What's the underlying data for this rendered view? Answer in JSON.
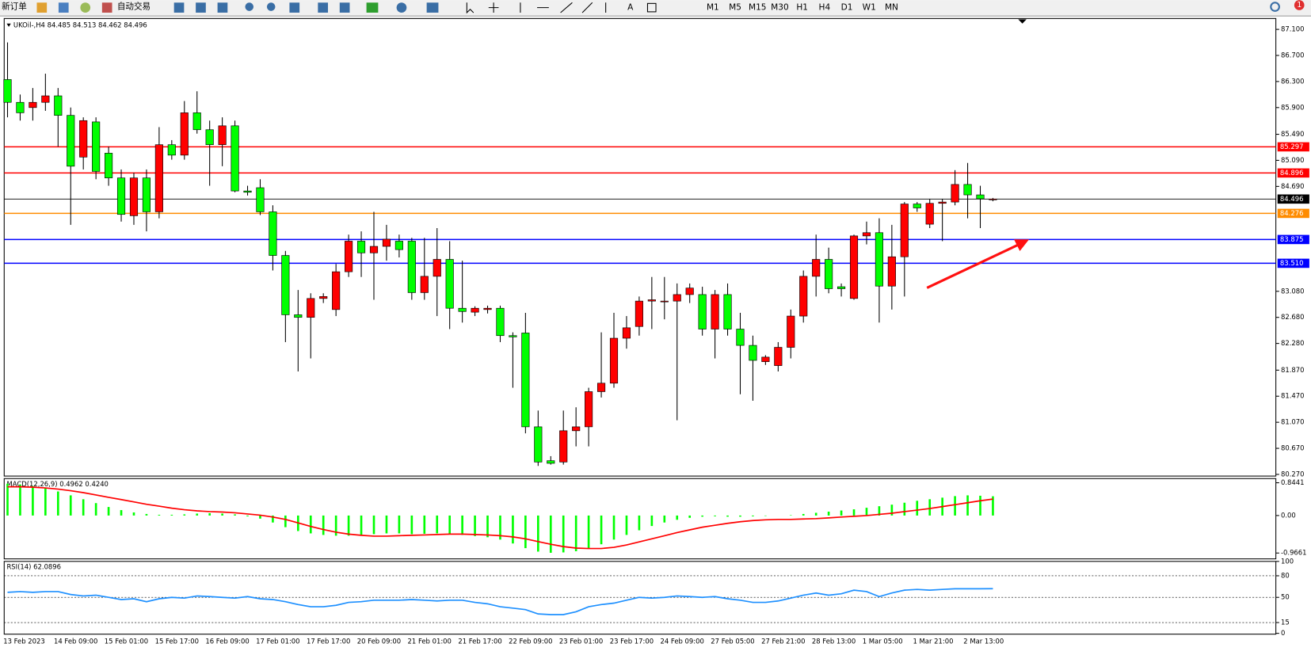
{
  "toolbar": {
    "new_order": "新订单",
    "auto_trading": "自动交易",
    "timeframes": [
      "M1",
      "M5",
      "M15",
      "M30",
      "H1",
      "H4",
      "D1",
      "W1",
      "MN"
    ],
    "text_tool": "A",
    "notification": "1"
  },
  "chart_data": [
    {
      "type": "candlestick",
      "title": "UKOil-,H4 84.485 84.513 84.462 84.496",
      "up_color": "#ff0000",
      "down_color": "#00ff00",
      "categories": [
        "13 Feb 2023",
        null,
        null,
        null,
        "14 Feb 09:00",
        null,
        null,
        null,
        "15 Feb 01:00",
        null,
        null,
        null,
        "15 Feb 17:00",
        null,
        null,
        null,
        "16 Feb 09:00",
        null,
        null,
        null,
        "17 Feb 01:00",
        null,
        null,
        null,
        "17 Feb 17:00",
        null,
        null,
        null,
        "20 Feb 09:00",
        null,
        null,
        null,
        "21 Feb 01:00",
        null,
        null,
        null,
        "21 Feb 17:00",
        null,
        null,
        null,
        "22 Feb 09:00",
        null,
        null,
        null,
        "23 Feb 01:00",
        null,
        null,
        null,
        "23 Feb 17:00",
        null,
        null,
        null,
        "24 Feb 09:00",
        null,
        null,
        null,
        "27 Feb 05:00",
        null,
        null,
        null,
        "27 Feb 21:00",
        null,
        null,
        null,
        "28 Feb 13:00",
        null,
        null,
        null,
        "1 Mar 05:00",
        null,
        null,
        null,
        "1 Mar 21:00",
        null,
        null,
        null,
        "2 Mar 13:00",
        null,
        null
      ],
      "open": [
        86.33,
        85.98,
        85.9,
        85.98,
        86.08,
        85.78,
        85.14,
        85.68,
        85.2,
        84.82,
        84.24,
        84.82,
        84.3,
        85.33,
        85.17,
        85.82,
        85.56,
        85.33,
        85.62,
        84.62,
        84.67,
        84.3,
        83.63,
        82.72,
        82.68,
        82.97,
        82.8,
        83.38,
        83.85,
        83.67,
        83.77,
        83.85,
        83.85,
        83.06,
        83.31,
        83.57,
        82.82,
        82.76,
        82.8,
        82.82,
        82.4,
        82.44,
        81.0,
        80.48,
        80.46,
        80.94,
        81.0,
        81.54,
        81.67,
        82.36,
        82.54,
        82.93,
        82.93,
        82.93,
        83.03,
        83.03,
        82.5,
        83.03,
        82.5,
        82.25,
        82.0,
        81.94,
        82.22,
        82.7,
        83.31,
        83.57,
        83.15,
        82.97,
        83.93,
        83.98,
        83.16,
        83.61,
        84.42,
        84.11,
        84.43,
        84.45,
        84.72,
        84.56,
        84.485
      ],
      "high": [
        86.9,
        86.1,
        86.2,
        86.42,
        86.2,
        85.9,
        85.75,
        85.75,
        85.3,
        84.95,
        84.9,
        84.95,
        85.6,
        85.4,
        86.0,
        86.15,
        85.7,
        85.75,
        85.7,
        84.7,
        84.8,
        84.4,
        83.7,
        83.1,
        83.05,
        83.05,
        83.5,
        83.95,
        84.0,
        84.3,
        84.1,
        83.95,
        83.9,
        83.9,
        84.05,
        83.85,
        83.55,
        82.85,
        82.86,
        82.86,
        82.45,
        82.75,
        81.25,
        80.55,
        81.25,
        81.3,
        81.6,
        82.45,
        82.75,
        82.7,
        83.0,
        83.3,
        83.3,
        83.2,
        83.2,
        83.15,
        83.1,
        83.2,
        82.75,
        82.4,
        82.1,
        82.3,
        82.8,
        83.4,
        83.95,
        83.75,
        83.2,
        83.95,
        84.15,
        84.2,
        84.1,
        84.45,
        84.45,
        84.5,
        84.5,
        84.94,
        85.05,
        84.7,
        84.513
      ],
      "low": [
        85.75,
        85.7,
        85.7,
        85.85,
        85.3,
        84.1,
        84.95,
        84.8,
        84.7,
        84.15,
        84.1,
        84.0,
        84.2,
        85.1,
        85.1,
        85.5,
        84.7,
        85.0,
        84.6,
        84.55,
        84.25,
        83.4,
        82.3,
        81.85,
        82.05,
        82.9,
        82.7,
        83.3,
        83.3,
        82.95,
        83.55,
        83.6,
        82.95,
        82.95,
        82.7,
        82.5,
        82.6,
        82.7,
        82.74,
        82.3,
        81.6,
        80.9,
        80.4,
        80.42,
        80.42,
        80.7,
        80.7,
        81.45,
        81.6,
        82.2,
        82.4,
        82.5,
        82.65,
        81.1,
        82.9,
        82.4,
        82.05,
        82.4,
        81.5,
        81.4,
        81.95,
        81.85,
        82.05,
        82.6,
        83.0,
        83.05,
        83.0,
        82.95,
        83.8,
        82.6,
        82.8,
        83.0,
        84.3,
        84.05,
        83.85,
        84.4,
        84.2,
        84.05,
        84.462
      ],
      "close": [
        85.98,
        85.82,
        85.98,
        86.08,
        85.78,
        85.0,
        85.7,
        84.92,
        84.82,
        84.26,
        84.82,
        84.3,
        85.33,
        85.17,
        85.82,
        85.56,
        85.33,
        85.62,
        84.62,
        84.6,
        84.3,
        83.63,
        82.72,
        82.68,
        82.97,
        83.0,
        83.38,
        83.85,
        83.67,
        83.77,
        83.88,
        83.72,
        83.06,
        83.31,
        83.57,
        82.82,
        82.77,
        82.82,
        82.82,
        82.4,
        82.38,
        81.0,
        80.46,
        80.44,
        80.94,
        81.0,
        81.54,
        81.67,
        82.36,
        82.52,
        82.93,
        82.95,
        82.93,
        83.03,
        83.13,
        82.5,
        83.03,
        82.5,
        82.25,
        82.02,
        82.07,
        82.22,
        82.7,
        83.31,
        83.57,
        83.12,
        83.12,
        83.93,
        83.98,
        83.16,
        83.61,
        84.42,
        84.36,
        84.43,
        84.45,
        84.72,
        84.56,
        84.5,
        84.496
      ],
      "ylim": [
        80.27,
        87.1
      ],
      "yticks": [
        {
          "value": 87.1,
          "label": "87.100"
        },
        {
          "value": 86.7,
          "label": "86.700"
        },
        {
          "value": 86.3,
          "label": "86.300"
        },
        {
          "value": 85.9,
          "label": "85.900"
        },
        {
          "value": 85.49,
          "label": "85.490"
        },
        {
          "value": 85.09,
          "label": "85.090"
        },
        {
          "value": 84.69,
          "label": "84.690"
        },
        {
          "value": 83.08,
          "label": "83.080"
        },
        {
          "value": 82.68,
          "label": "82.680"
        },
        {
          "value": 82.28,
          "label": "82.280"
        },
        {
          "value": 81.87,
          "label": "81.870"
        },
        {
          "value": 81.47,
          "label": "81.470"
        },
        {
          "value": 81.07,
          "label": "81.070"
        },
        {
          "value": 80.67,
          "label": "80.670"
        },
        {
          "value": 80.27,
          "label": "80.270"
        }
      ],
      "hlines": [
        {
          "value": 85.297,
          "color": "#ff0000"
        },
        {
          "value": 84.896,
          "color": "#ff0000"
        },
        {
          "value": 84.496,
          "color": "#000000"
        },
        {
          "value": 84.276,
          "color": "#ff8c00"
        },
        {
          "value": 83.875,
          "color": "#0000ff"
        },
        {
          "value": 83.51,
          "label": "83.510",
          "color": "#0000ff"
        }
      ]
    },
    {
      "type": "macd",
      "title": "MACD(12,26,9) 0.4962 0.4240",
      "series": [
        {
          "kind": "bar",
          "color": "#00ff00",
          "values": [
            0.82,
            0.8,
            0.76,
            0.7,
            0.62,
            0.52,
            0.42,
            0.32,
            0.22,
            0.14,
            0.08,
            0.04,
            0.02,
            0.02,
            0.03,
            0.05,
            0.06,
            0.05,
            0.03,
            -0.02,
            -0.08,
            -0.18,
            -0.3,
            -0.4,
            -0.46,
            -0.5,
            -0.52,
            -0.52,
            -0.5,
            -0.48,
            -0.46,
            -0.46,
            -0.48,
            -0.47,
            -0.46,
            -0.48,
            -0.5,
            -0.53,
            -0.56,
            -0.62,
            -0.72,
            -0.84,
            -0.93,
            -0.96,
            -0.95,
            -0.92,
            -0.84,
            -0.74,
            -0.62,
            -0.5,
            -0.38,
            -0.27,
            -0.18,
            -0.11,
            -0.06,
            -0.03,
            -0.02,
            -0.03,
            -0.03,
            -0.02,
            -0.01,
            0.0,
            0.01,
            0.04,
            0.07,
            0.1,
            0.13,
            0.16,
            0.2,
            0.24,
            0.28,
            0.33,
            0.38,
            0.42,
            0.46,
            0.5,
            0.52,
            0.51,
            0.4962
          ]
        },
        {
          "kind": "line",
          "color": "#ff0000",
          "values": [
            0.74,
            0.74,
            0.73,
            0.71,
            0.68,
            0.64,
            0.59,
            0.53,
            0.47,
            0.41,
            0.35,
            0.29,
            0.24,
            0.19,
            0.15,
            0.12,
            0.1,
            0.09,
            0.07,
            0.04,
            0.01,
            -0.04,
            -0.1,
            -0.19,
            -0.28,
            -0.36,
            -0.43,
            -0.48,
            -0.51,
            -0.53,
            -0.53,
            -0.52,
            -0.51,
            -0.5,
            -0.49,
            -0.48,
            -0.48,
            -0.49,
            -0.5,
            -0.52,
            -0.55,
            -0.6,
            -0.67,
            -0.74,
            -0.8,
            -0.84,
            -0.85,
            -0.85,
            -0.82,
            -0.76,
            -0.68,
            -0.6,
            -0.52,
            -0.44,
            -0.37,
            -0.3,
            -0.25,
            -0.2,
            -0.16,
            -0.13,
            -0.11,
            -0.1,
            -0.1,
            -0.09,
            -0.08,
            -0.06,
            -0.04,
            -0.02,
            0.0,
            0.03,
            0.06,
            0.1,
            0.14,
            0.18,
            0.23,
            0.28,
            0.33,
            0.38,
            0.424
          ]
        }
      ],
      "ylim": [
        -0.9661,
        0.8441
      ],
      "yticks": [
        0.8441,
        {
          "value": 0,
          "label": "0.00"
        },
        -0.9661
      ]
    },
    {
      "type": "rsi",
      "title": "RSI(14) 62.0896",
      "color": "#1e90ff",
      "values": [
        57,
        58,
        57,
        58,
        58,
        54,
        52,
        53,
        50,
        47,
        48,
        44,
        48,
        50,
        49,
        52,
        51,
        50,
        49,
        51,
        48,
        47,
        44,
        40,
        37,
        37,
        39,
        43,
        44,
        46,
        46,
        46,
        47,
        46,
        45,
        46,
        46,
        43,
        41,
        37,
        35,
        33,
        27,
        26,
        26,
        30,
        37,
        40,
        42,
        46,
        50,
        49,
        50,
        52,
        51,
        50,
        51,
        48,
        46,
        43,
        43,
        45,
        49,
        53,
        56,
        53,
        55,
        60,
        58,
        51,
        56,
        60,
        61,
        60,
        61,
        62,
        62,
        62,
        62.0896
      ],
      "ylim": [
        0,
        100
      ],
      "yticks": [
        100,
        80,
        50,
        15,
        0
      ]
    }
  ]
}
